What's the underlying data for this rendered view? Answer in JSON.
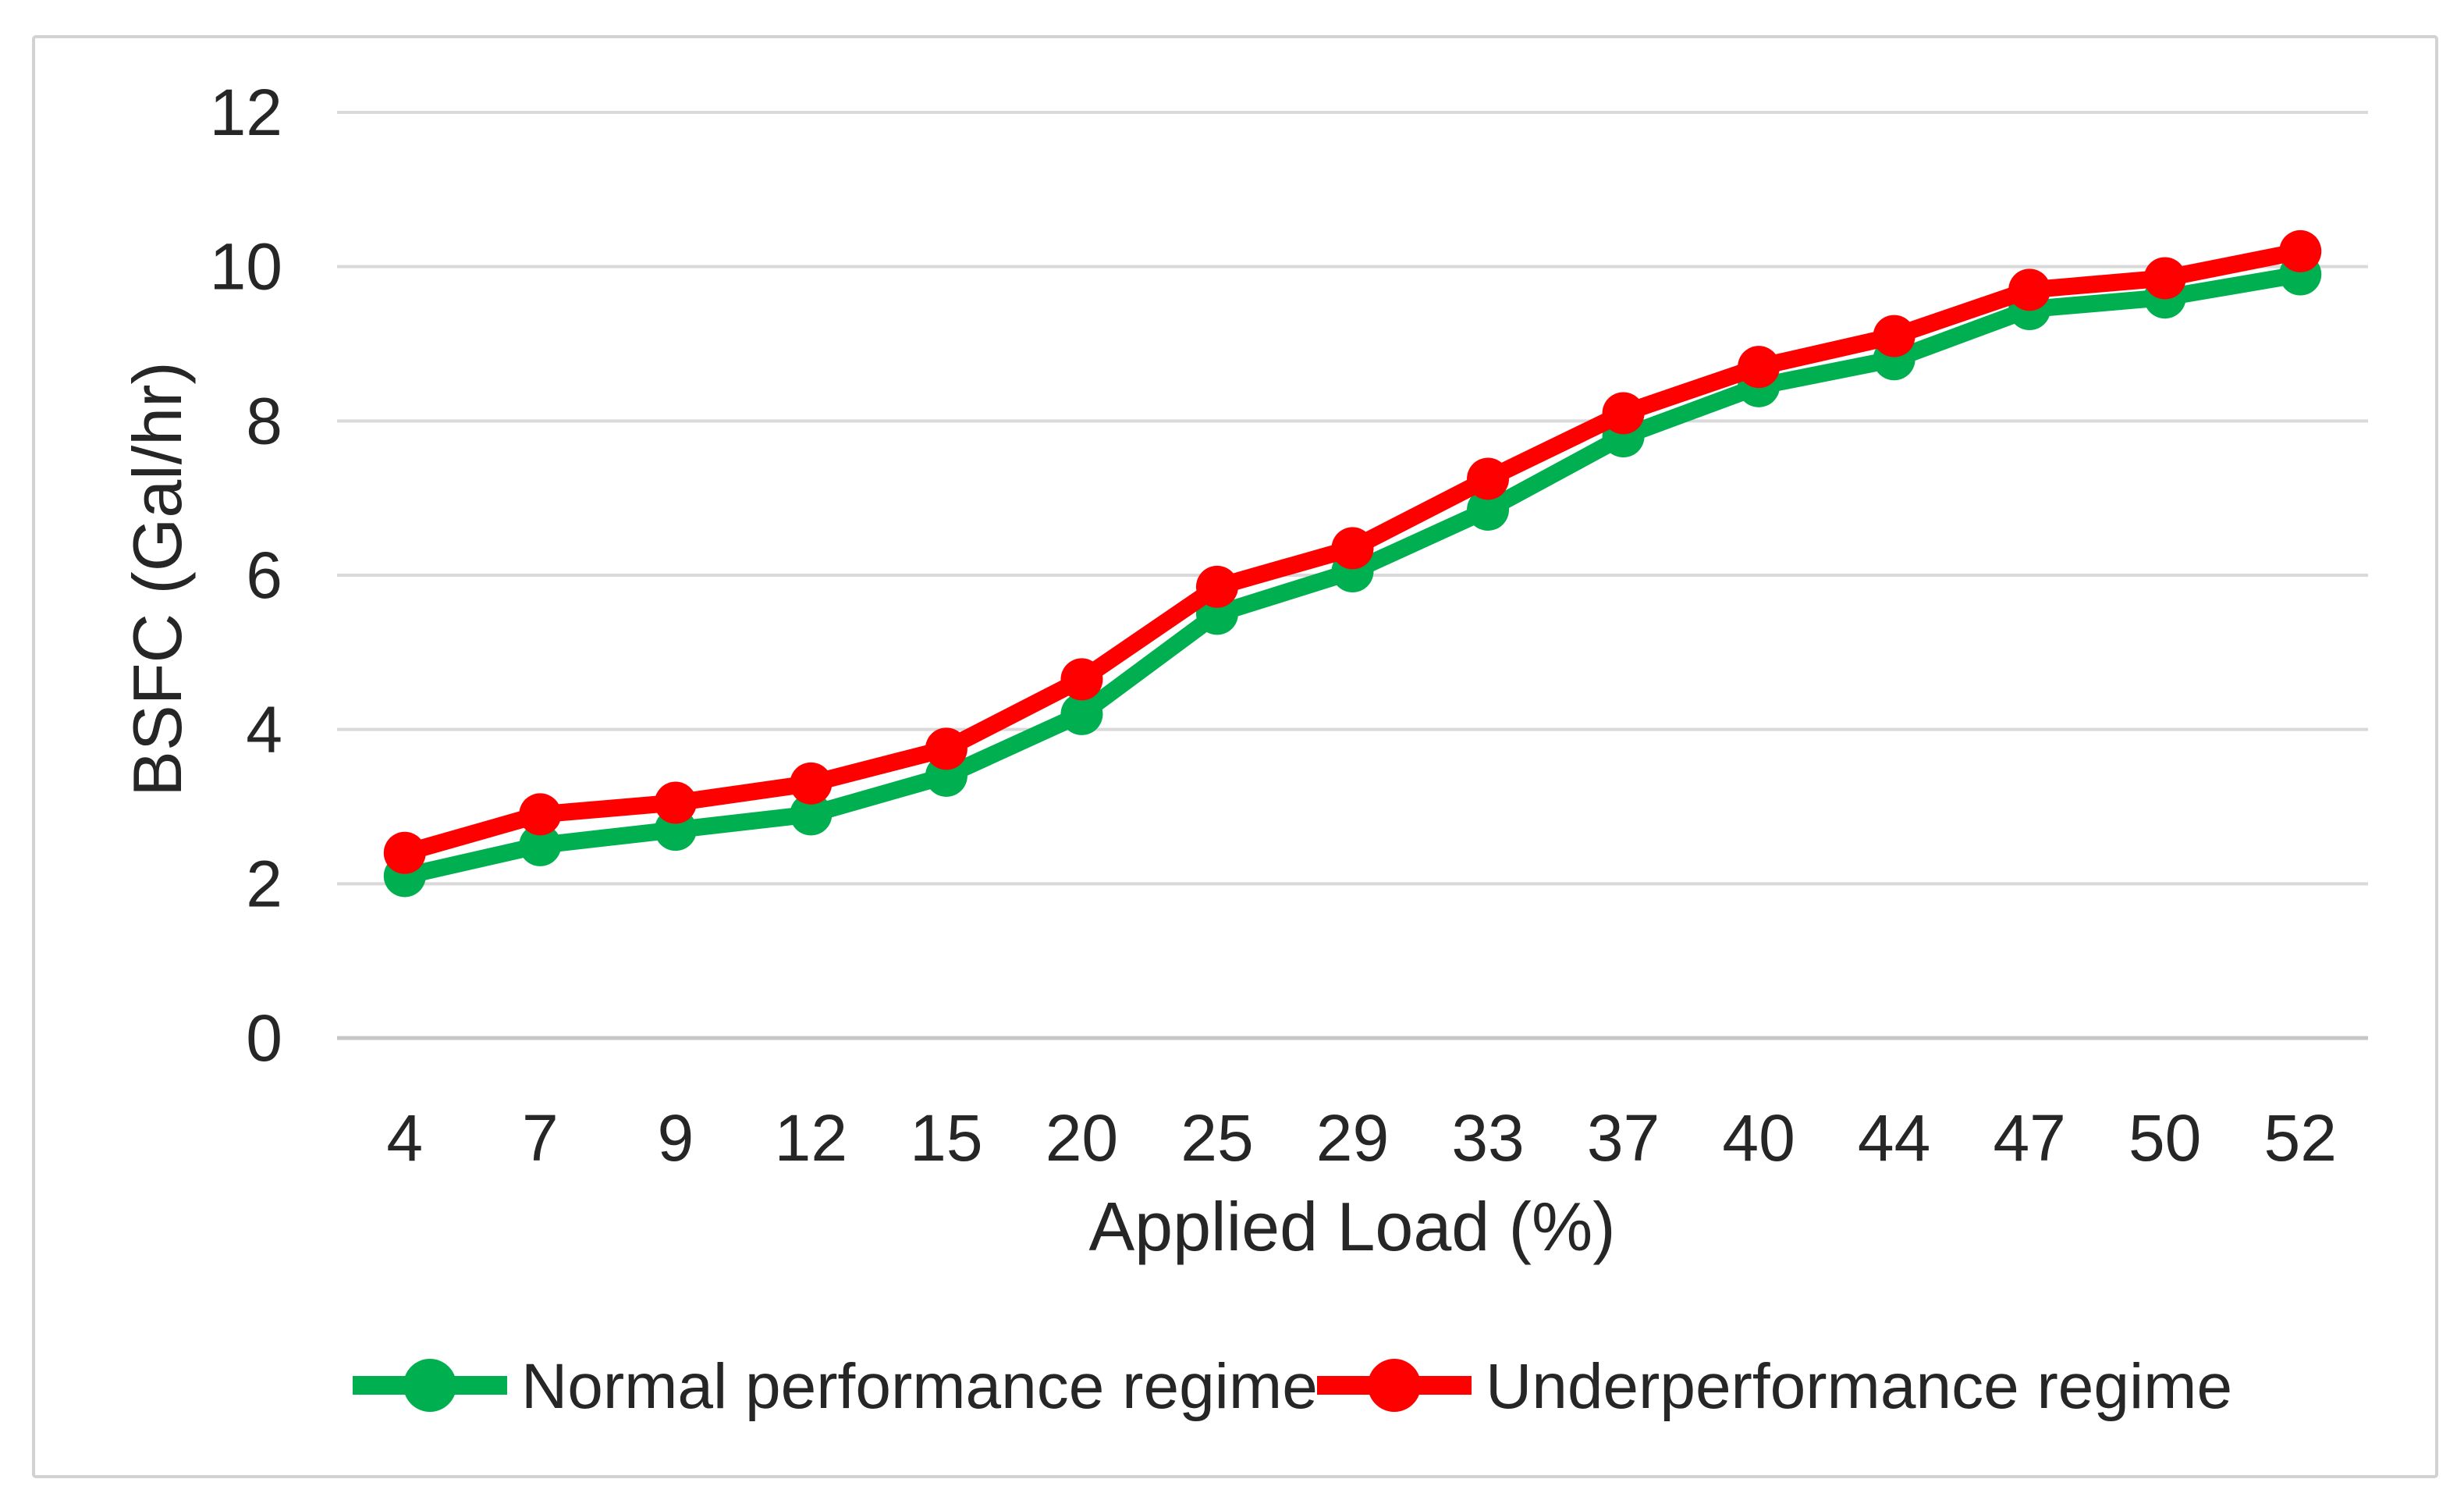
{
  "figure": {
    "background": "#ffffff",
    "border_color": "#d2d2d2",
    "gridline_color": "#d9d9d9",
    "axis_line_color": "#c6c6c6",
    "text_color": "#262626"
  },
  "chart_data": {
    "type": "line",
    "title": "",
    "xlabel": "Applied Load (%)",
    "ylabel": "BSFC (Gal/hr)",
    "categories": [
      4,
      7,
      9,
      12,
      15,
      20,
      25,
      29,
      33,
      37,
      40,
      44,
      47,
      50,
      52
    ],
    "series": [
      {
        "name": "Normal performance regime",
        "color": "#00b050",
        "values": [
          2.1,
          2.5,
          2.7,
          2.9,
          3.4,
          4.2,
          5.5,
          6.05,
          6.85,
          7.8,
          8.45,
          8.8,
          9.45,
          9.6,
          9.9
        ]
      },
      {
        "name": "Underperformance regime",
        "color": "#ff0000",
        "values": [
          2.4,
          2.9,
          3.05,
          3.3,
          3.75,
          4.65,
          5.85,
          6.35,
          7.25,
          8.1,
          8.7,
          9.1,
          9.7,
          9.85,
          10.2
        ]
      }
    ],
    "ylim": [
      0,
      12
    ],
    "yticks": [
      0,
      2,
      4,
      6,
      8,
      10,
      12
    ],
    "grid": true,
    "legend_position": "bottom",
    "marker": "circle"
  }
}
